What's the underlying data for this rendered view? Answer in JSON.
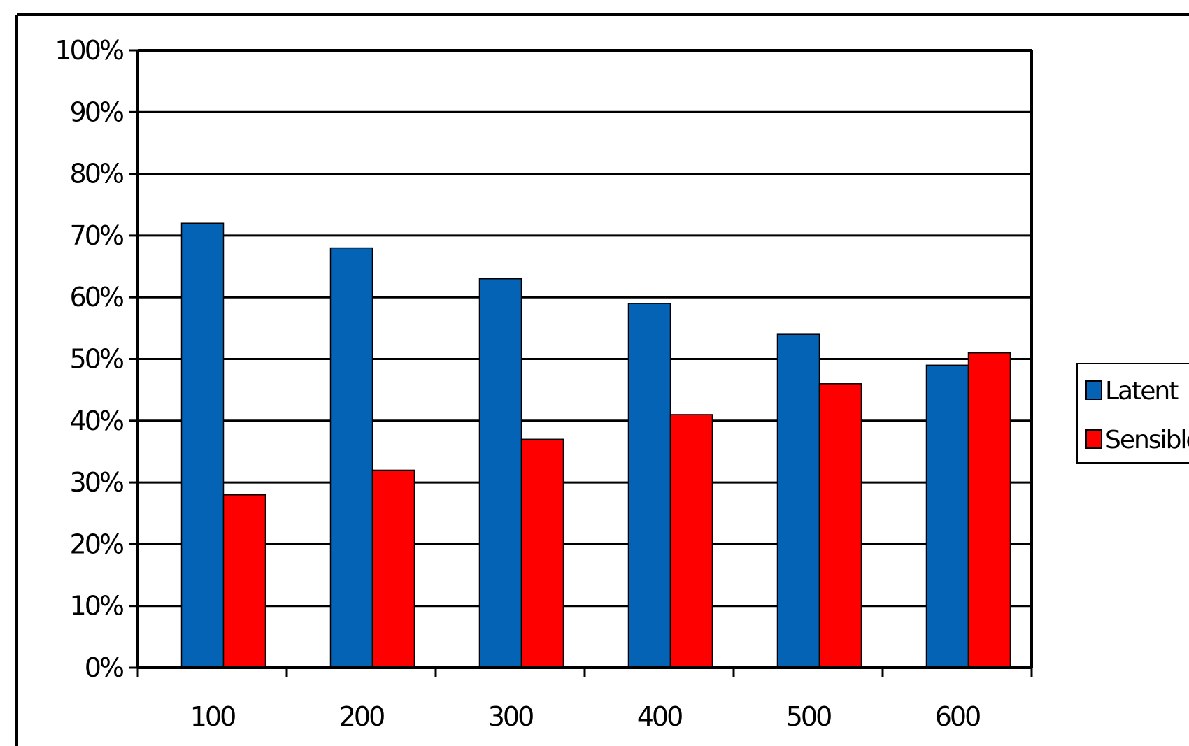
{
  "chart_data": {
    "type": "bar",
    "categories": [
      "100",
      "200",
      "300",
      "400",
      "500",
      "600"
    ],
    "series": [
      {
        "name": "Latent",
        "values": [
          72,
          68,
          63,
          59,
          54,
          49
        ],
        "color": "#0563b5"
      },
      {
        "name": "Sensible",
        "values": [
          28,
          32,
          37,
          41,
          46,
          51
        ],
        "color": "#ff0000"
      }
    ],
    "title": "",
    "xlabel": "",
    "ylabel": "",
    "ylim": [
      0,
      100
    ],
    "y_ticks": [
      "0%",
      "10%",
      "20%",
      "30%",
      "40%",
      "50%",
      "60%",
      "70%",
      "80%",
      "90%",
      "100%"
    ],
    "grid": true,
    "legend_position": "right"
  }
}
